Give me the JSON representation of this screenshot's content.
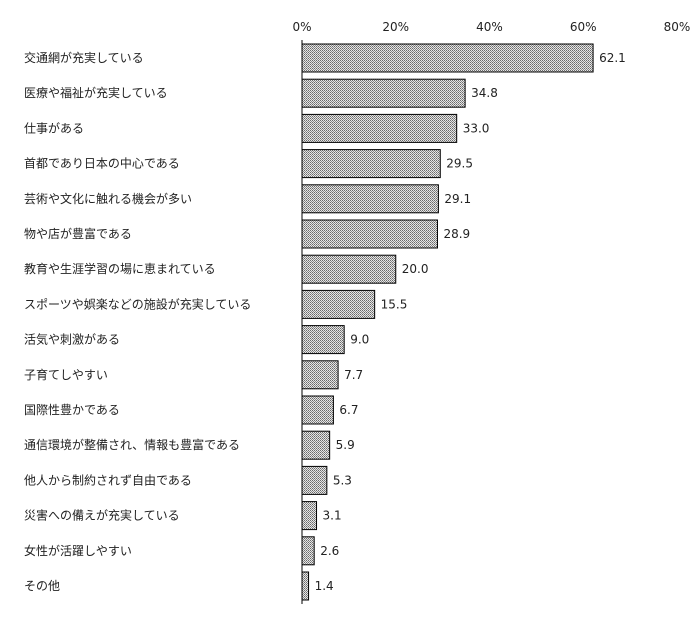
{
  "chart_data": {
    "type": "bar",
    "orientation": "horizontal",
    "unit": "%",
    "xlim": [
      0,
      80
    ],
    "ticks": [
      0,
      20,
      40,
      60,
      80
    ],
    "tick_labels": [
      "0%",
      "20%",
      "40%",
      "60%",
      "80%"
    ],
    "tick_position": "top",
    "grid": false,
    "bar_fill": "#b8b8b8",
    "bar_stroke": "#000000",
    "categories": [
      "交通網が充実している",
      "医療や福祉が充実している",
      "仕事がある",
      "首都であり日本の中心である",
      "芸術や文化に触れる機会が多い",
      "物や店が豊富である",
      "教育や生涯学習の場に恵まれている",
      "スポーツや娯楽などの施設が充実している",
      "活気や刺激がある",
      "子育てしやすい",
      "国際性豊かである",
      "通信環境が整備され、情報も豊富である",
      "他人から制約されず自由である",
      "災害への備えが充実している",
      "女性が活躍しやすい",
      "その他"
    ],
    "values": [
      62.1,
      34.8,
      33.0,
      29.5,
      29.1,
      28.9,
      20.0,
      15.5,
      9.0,
      7.7,
      6.7,
      5.9,
      5.3,
      3.1,
      2.6,
      1.4
    ],
    "value_labels": [
      "62.1",
      "34.8",
      "33.0",
      "29.5",
      "29.1",
      "28.9",
      "20.0",
      "15.5",
      "9.0",
      "7.7",
      "6.7",
      "5.9",
      "5.3",
      "3.1",
      "2.6",
      "1.4"
    ]
  }
}
